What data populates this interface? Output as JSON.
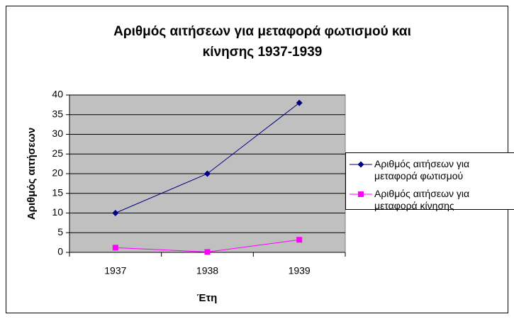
{
  "chart_data": {
    "type": "line",
    "title": [
      "Αριθμός αιτήσεων για μεταφορά φωτισμού και",
      "κίνησης 1937-1939"
    ],
    "x_label": "Έτη",
    "y_label": "Αριθμός αιτήσεων",
    "categories": [
      "1937",
      "1938",
      "1939"
    ],
    "series": [
      {
        "name": "Αριθμός αιτήσεων για μεταφορά φωτισμού",
        "color": "#000080",
        "marker": "diamond",
        "values": [
          10,
          20,
          38
        ]
      },
      {
        "name": "Αριθμός αιτήσεων για μεταφορά κίνησης",
        "color": "#ff00ff",
        "marker": "square",
        "values": [
          1.2,
          0.1,
          3.2
        ]
      }
    ],
    "ylim": [
      0,
      40
    ],
    "yticks": [
      0,
      5,
      10,
      15,
      20,
      25,
      30,
      35,
      40
    ],
    "grid": true,
    "legend": "right"
  }
}
